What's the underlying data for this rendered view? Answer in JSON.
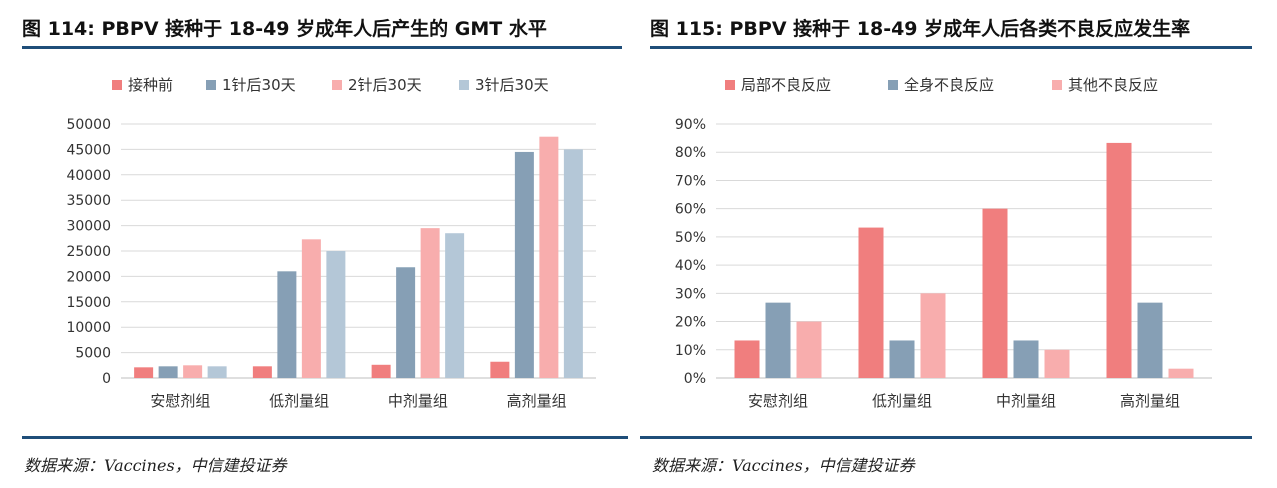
{
  "charts": {
    "left": {
      "title": "图 114: PBPV 接种于 18-49 岁成年人后产生的 GMT 水平",
      "source": "数据来源：Vaccines，中信建投证券"
    },
    "right": {
      "title": "图 115: PBPV 接种于 18-49 岁成年人后各类不良反应发生率",
      "source": "数据来源：Vaccines，中信建投证券"
    }
  },
  "colors": {
    "rule": "#1f4e79",
    "grid": "#d9d9d9",
    "axis": "#bfbfbf"
  },
  "chart_data": [
    {
      "type": "bar",
      "title": "图 114: PBPV 接种于 18-49 岁成年人后产生的 GMT 水平",
      "categories": [
        "安慰剂组",
        "低剂量组",
        "中剂量组",
        "高剂量组"
      ],
      "series": [
        {
          "name": "接种前",
          "color": "#f07e7e",
          "values": [
            2100,
            2300,
            2600,
            3200
          ]
        },
        {
          "name": "1针后30天",
          "color": "#869fb5",
          "values": [
            2300,
            21000,
            21800,
            44500
          ]
        },
        {
          "name": "2针后30天",
          "color": "#f8adad",
          "values": [
            2500,
            27300,
            29500,
            47500
          ]
        },
        {
          "name": "3针后30天",
          "color": "#b4c7d7",
          "values": [
            2300,
            25000,
            28500,
            45000
          ]
        }
      ],
      "yticks": [
        "0",
        "5000",
        "10000",
        "15000",
        "20000",
        "25000",
        "30000",
        "35000",
        "40000",
        "45000",
        "50000"
      ],
      "ylim": [
        0,
        50000
      ],
      "legend_position": "top-left",
      "grid": true
    },
    {
      "type": "bar",
      "title": "图 115: PBPV 接种于 18-49 岁成年人后各类不良反应发生率",
      "categories": [
        "安慰剂组",
        "低剂量组",
        "中剂量组",
        "高剂量组"
      ],
      "series": [
        {
          "name": "局部不良反应",
          "color": "#f07e7e",
          "values": [
            13.3,
            53.3,
            60.0,
            83.3
          ]
        },
        {
          "name": "全身不良反应",
          "color": "#869fb5",
          "values": [
            26.7,
            13.3,
            13.3,
            26.7
          ]
        },
        {
          "name": "其他不良反应",
          "color": "#f8adad",
          "values": [
            20.0,
            30.0,
            10.0,
            3.3
          ]
        }
      ],
      "yticks": [
        "0%",
        "10%",
        "20%",
        "30%",
        "40%",
        "50%",
        "60%",
        "70%",
        "80%",
        "90%"
      ],
      "ylim": [
        0,
        90
      ],
      "legend_position": "top-left",
      "grid": true
    }
  ]
}
